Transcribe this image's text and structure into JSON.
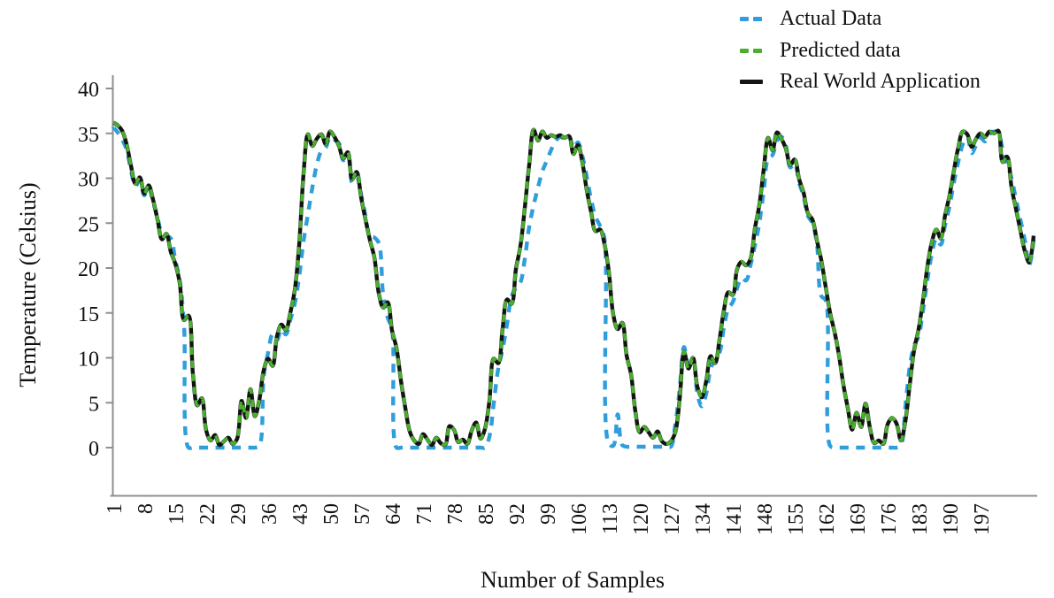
{
  "chart_data": {
    "type": "line",
    "title": "",
    "xlabel": "Number of Samples",
    "ylabel": "Temperature (Celsius)",
    "x": {
      "start": 1,
      "step": 1,
      "count": 209
    },
    "x_ticks": [
      1,
      8,
      15,
      22,
      29,
      36,
      43,
      50,
      57,
      64,
      71,
      78,
      85,
      92,
      99,
      106,
      113,
      120,
      127,
      134,
      141,
      148,
      155,
      162,
      169,
      176,
      183,
      190,
      197
    ],
    "y_ticks": [
      0,
      5,
      10,
      15,
      20,
      25,
      30,
      35,
      40
    ],
    "ylim": [
      -5,
      40
    ],
    "grid": false,
    "legend_position": "top-right",
    "axis_color": "#8f8f8f",
    "text_color": "#111111",
    "series": [
      {
        "name": "Actual Data",
        "color": "#2f9edb",
        "line_style": "dashed",
        "values": [
          35.7,
          35.1,
          34.3,
          33.2,
          30.9,
          29.1,
          29.8,
          28.1,
          28.9,
          27.4,
          25.6,
          23.9,
          23.6,
          23.3,
          20.9,
          18.7,
          13.5,
          0,
          0,
          0,
          0,
          0,
          0,
          0,
          0,
          0,
          0,
          0,
          0,
          0,
          0,
          0,
          0,
          0.2,
          8.0,
          10.6,
          12.6,
          12.0,
          13.2,
          12.6,
          14.2,
          16.0,
          19.0,
          23.0,
          26.0,
          29.0,
          31.5,
          33.0,
          33.4,
          34.6,
          34.3,
          33.9,
          32.0,
          32.5,
          29.5,
          30.2,
          28.2,
          25.8,
          23.6,
          23.4,
          22.8,
          17.0,
          14.5,
          13.2,
          0,
          0,
          0,
          0,
          0,
          0,
          0,
          0,
          0,
          0,
          0,
          0,
          0,
          0,
          0,
          0,
          0,
          0,
          0,
          0,
          0,
          1.2,
          5.0,
          8.8,
          11.0,
          13.8,
          16.8,
          17.8,
          18.4,
          21.0,
          24.6,
          27.0,
          29.0,
          30.8,
          32.0,
          33.2,
          34.2,
          34.6,
          34.4,
          34.7,
          33.4,
          34.0,
          32.5,
          30.2,
          27.6,
          25.7,
          24.7,
          23.3,
          0.4,
          0.2,
          3.7,
          0.3,
          0.1,
          0.1,
          0.1,
          0.1,
          0.1,
          0.1,
          0.1,
          0.1,
          0.1,
          0.1,
          0.1,
          2.5,
          6.5,
          11.2,
          9.3,
          9.6,
          6.0,
          4.6,
          6.0,
          8.8,
          9.9,
          10.6,
          13.4,
          15.5,
          16.2,
          17.8,
          18.9,
          18.6,
          20.3,
          22.5,
          25.0,
          28.6,
          32.2,
          32.6,
          34.2,
          34.6,
          33.6,
          31.2,
          31.6,
          29.5,
          28.0,
          25.8,
          25.0,
          22.8,
          16.9,
          16.4,
          0.2,
          0,
          0,
          0,
          0,
          0,
          0,
          0,
          0,
          0,
          0,
          0,
          0,
          0,
          0,
          0,
          0.3,
          4.5,
          9.0,
          11.4,
          12.4,
          15.3,
          18.7,
          21.6,
          23.3,
          22.6,
          24.8,
          26.9,
          29.6,
          31.9,
          33.8,
          34.6,
          32.8,
          33.7,
          34.5,
          34.1,
          34.9,
          35.2,
          35.0,
          33.2,
          31.6,
          30.0,
          27.7,
          25.4,
          23.1,
          20.3,
          23.2
        ]
      },
      {
        "name": "Predicted data",
        "color": "#4bae30",
        "line_style": "dashed",
        "values": [
          36.2,
          35.9,
          35.3,
          33.8,
          31.4,
          29.4,
          30.1,
          28.3,
          29.2,
          27.6,
          25.4,
          23.2,
          23.8,
          21.8,
          20.5,
          18.4,
          14.2,
          14.7,
          8.2,
          4.7,
          5.5,
          1.9,
          0.8,
          1.4,
          0.3,
          0.7,
          1.1,
          0.4,
          1.0,
          5.2,
          3.3,
          6.5,
          3.5,
          5.3,
          8.6,
          9.9,
          9.1,
          12.4,
          13.7,
          13.1,
          15.0,
          17.5,
          22.5,
          30.5,
          34.9,
          33.6,
          34.4,
          34.9,
          33.8,
          35.2,
          34.6,
          33.6,
          32.2,
          32.9,
          29.9,
          30.7,
          27.9,
          25.4,
          23.1,
          21.2,
          17.2,
          15.6,
          16.2,
          13.0,
          11.1,
          7.5,
          4.4,
          1.8,
          0.8,
          0.4,
          1.5,
          0.9,
          0.3,
          1.1,
          0.5,
          0.3,
          2.4,
          2.0,
          0.6,
          0.9,
          0.4,
          1.9,
          2.8,
          1.0,
          2.1,
          5.2,
          9.9,
          9.4,
          13.3,
          16.5,
          16.0,
          19.9,
          22.4,
          26.7,
          31.5,
          35.4,
          34.2,
          35.2,
          34.5,
          34.8,
          34.6,
          34.8,
          34.5,
          34.7,
          32.7,
          33.7,
          31.8,
          28.7,
          26.2,
          24.1,
          24.3,
          22.7,
          19.6,
          14.8,
          13.2,
          13.9,
          10.3,
          8.2,
          4.0,
          1.7,
          2.3,
          1.7,
          1.1,
          1.8,
          0.7,
          0.4,
          0.7,
          1.7,
          5.4,
          10.7,
          8.8,
          10.0,
          6.8,
          5.6,
          7.4,
          10.2,
          9.4,
          12.0,
          15.3,
          17.3,
          17.0,
          19.9,
          20.7,
          20.3,
          21.0,
          24.4,
          27.0,
          31.0,
          34.5,
          33.1,
          35.1,
          34.4,
          33.3,
          31.5,
          32.1,
          29.9,
          28.4,
          26.1,
          25.4,
          23.1,
          20.9,
          17.9,
          15.0,
          12.9,
          10.3,
          7.0,
          4.4,
          2.0,
          3.9,
          2.3,
          4.9,
          2.2,
          0.5,
          0.8,
          0.4,
          2.6,
          3.3,
          2.7,
          0.8,
          2.9,
          7.0,
          10.9,
          13.2,
          16.4,
          20.2,
          22.9,
          24.3,
          23.3,
          25.9,
          28.1,
          30.9,
          33.5,
          35.2,
          34.9,
          33.5,
          34.4,
          35.0,
          34.6,
          35.2,
          35.0,
          35.3,
          31.8,
          32.4,
          29.0,
          26.6,
          24.2,
          21.9,
          20.6,
          23.6
        ]
      },
      {
        "name": "Real World Application",
        "color": "#141414",
        "line_style": "solid",
        "values": [
          36.2,
          35.9,
          35.3,
          33.8,
          31.4,
          29.4,
          30.1,
          28.3,
          29.2,
          27.6,
          25.4,
          23.2,
          23.8,
          21.8,
          20.5,
          18.4,
          14.2,
          14.7,
          8.2,
          4.7,
          5.5,
          1.9,
          0.8,
          1.4,
          0.3,
          0.7,
          1.1,
          0.4,
          1.0,
          5.2,
          3.3,
          6.5,
          3.5,
          5.3,
          8.6,
          9.9,
          9.1,
          12.4,
          13.7,
          13.1,
          15.0,
          17.5,
          22.5,
          30.5,
          34.9,
          33.6,
          34.4,
          34.9,
          33.8,
          35.2,
          34.6,
          33.6,
          32.2,
          32.9,
          29.9,
          30.7,
          27.9,
          25.4,
          23.1,
          21.2,
          17.2,
          15.6,
          16.2,
          13.0,
          11.1,
          7.5,
          4.4,
          1.8,
          0.8,
          0.4,
          1.5,
          0.9,
          0.3,
          1.1,
          0.5,
          0.3,
          2.4,
          2.0,
          0.6,
          0.9,
          0.4,
          1.9,
          2.8,
          1.0,
          2.1,
          5.2,
          9.9,
          9.4,
          13.3,
          16.5,
          16.0,
          19.9,
          22.4,
          26.7,
          31.5,
          35.4,
          34.2,
          35.2,
          34.5,
          34.8,
          34.6,
          34.8,
          34.5,
          34.7,
          32.7,
          33.7,
          31.8,
          28.7,
          26.2,
          24.1,
          24.3,
          22.7,
          19.6,
          14.8,
          13.2,
          13.9,
          10.3,
          8.2,
          4.0,
          1.7,
          2.3,
          1.7,
          1.1,
          1.8,
          0.7,
          0.4,
          0.7,
          1.7,
          5.4,
          10.7,
          8.8,
          10.0,
          6.8,
          5.6,
          7.4,
          10.2,
          9.4,
          12.0,
          15.3,
          17.3,
          17.0,
          19.9,
          20.7,
          20.3,
          21.0,
          24.4,
          27.0,
          31.0,
          34.5,
          33.1,
          35.1,
          34.4,
          33.3,
          31.5,
          32.1,
          29.9,
          28.4,
          26.1,
          25.4,
          23.1,
          20.9,
          17.9,
          15.0,
          12.9,
          10.3,
          7.0,
          4.4,
          2.0,
          3.9,
          2.3,
          4.9,
          2.2,
          0.5,
          0.8,
          0.4,
          2.6,
          3.3,
          2.7,
          0.8,
          2.9,
          7.0,
          10.9,
          13.2,
          16.4,
          20.2,
          22.9,
          24.3,
          23.3,
          25.9,
          28.1,
          30.9,
          33.5,
          35.2,
          34.9,
          33.5,
          34.4,
          35.0,
          34.6,
          35.2,
          35.0,
          35.3,
          31.8,
          32.4,
          29.0,
          26.6,
          24.2,
          21.9,
          20.6,
          23.6
        ]
      }
    ]
  }
}
